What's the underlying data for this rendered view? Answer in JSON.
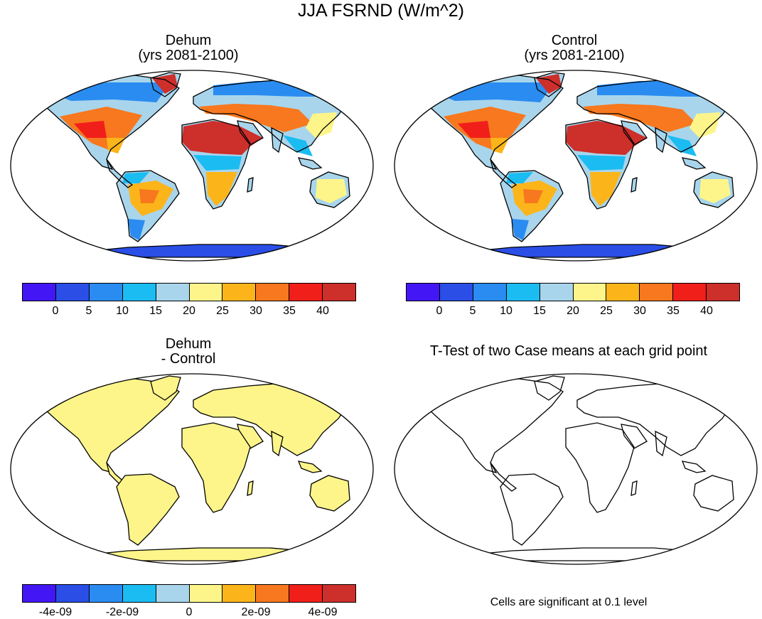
{
  "main_title": "JJA FSRND (W/m^2)",
  "panels": {
    "dehum": {
      "title_line1": "Dehum",
      "title_line2": "(yrs 2081-2100)"
    },
    "control": {
      "title_line1": "Control",
      "title_line2": "(yrs 2081-2100)"
    },
    "diff": {
      "title_line1": "Dehum",
      "title_line2": "- Control"
    },
    "ttest": {
      "title": "T-Test of two Case means at each grid point",
      "note": "Cells are significant at 0.1 level"
    }
  },
  "colorbar": {
    "colors": [
      "#4316f5",
      "#2a4ee6",
      "#2a8cf0",
      "#1bbcf2",
      "#a8d5ec",
      "#fef58a",
      "#fbb51a",
      "#f7781e",
      "#f11f1a",
      "#cd2f2b"
    ],
    "abs_ticks": [
      "0",
      "5",
      "10",
      "15",
      "20",
      "25",
      "30",
      "35",
      "40"
    ],
    "diff_ticks": [
      "-4e-09",
      "-2e-09",
      "0",
      "2e-09",
      "4e-09"
    ]
  },
  "chart_data": [
    {
      "type": "heatmap",
      "title": "Dehum (yrs 2081-2100)",
      "variable": "JJA FSRND (W/m^2)",
      "levels": [
        0,
        5,
        10,
        15,
        20,
        25,
        30,
        35,
        40
      ],
      "regions": [
        {
          "region": "Sahara / Arabia",
          "value": 40
        },
        {
          "region": "Mediterranean / Middle East",
          "value": 35
        },
        {
          "region": "Central Asia",
          "value": 30
        },
        {
          "region": "Western / Central US",
          "value": 30
        },
        {
          "region": "Central Brazil",
          "value": 28
        },
        {
          "region": "Southern Africa",
          "value": 25
        },
        {
          "region": "Australia",
          "value": 20
        },
        {
          "region": "Siberia",
          "value": 15
        },
        {
          "region": "Canada / Alaska",
          "value": 12
        },
        {
          "region": "Tropical Southeast Asia",
          "value": 12
        },
        {
          "region": "Greenland",
          "value": 40
        },
        {
          "region": "Antarctica",
          "value": 2
        }
      ]
    },
    {
      "type": "heatmap",
      "title": "Control (yrs 2081-2100)",
      "variable": "JJA FSRND (W/m^2)",
      "levels": [
        0,
        5,
        10,
        15,
        20,
        25,
        30,
        35,
        40
      ],
      "regions": [
        {
          "region": "Sahara / Arabia",
          "value": 40
        },
        {
          "region": "Mediterranean / Middle East",
          "value": 35
        },
        {
          "region": "Central Asia",
          "value": 30
        },
        {
          "region": "Western / Central US",
          "value": 30
        },
        {
          "region": "Central Brazil",
          "value": 28
        },
        {
          "region": "Southern Africa",
          "value": 25
        },
        {
          "region": "Australia",
          "value": 20
        },
        {
          "region": "Siberia",
          "value": 15
        },
        {
          "region": "Canada / Alaska",
          "value": 12
        },
        {
          "region": "Tropical Southeast Asia",
          "value": 12
        },
        {
          "region": "Greenland",
          "value": 40
        },
        {
          "region": "Antarctica",
          "value": 2
        }
      ]
    },
    {
      "type": "heatmap",
      "title": "Dehum - Control",
      "levels": [
        -4e-09,
        -2e-09,
        0,
        2e-09,
        4e-09
      ],
      "regions": [
        {
          "region": "All land",
          "value": 0
        }
      ]
    },
    {
      "type": "heatmap",
      "title": "T-Test of two Case means at each grid point",
      "regions": []
    }
  ]
}
